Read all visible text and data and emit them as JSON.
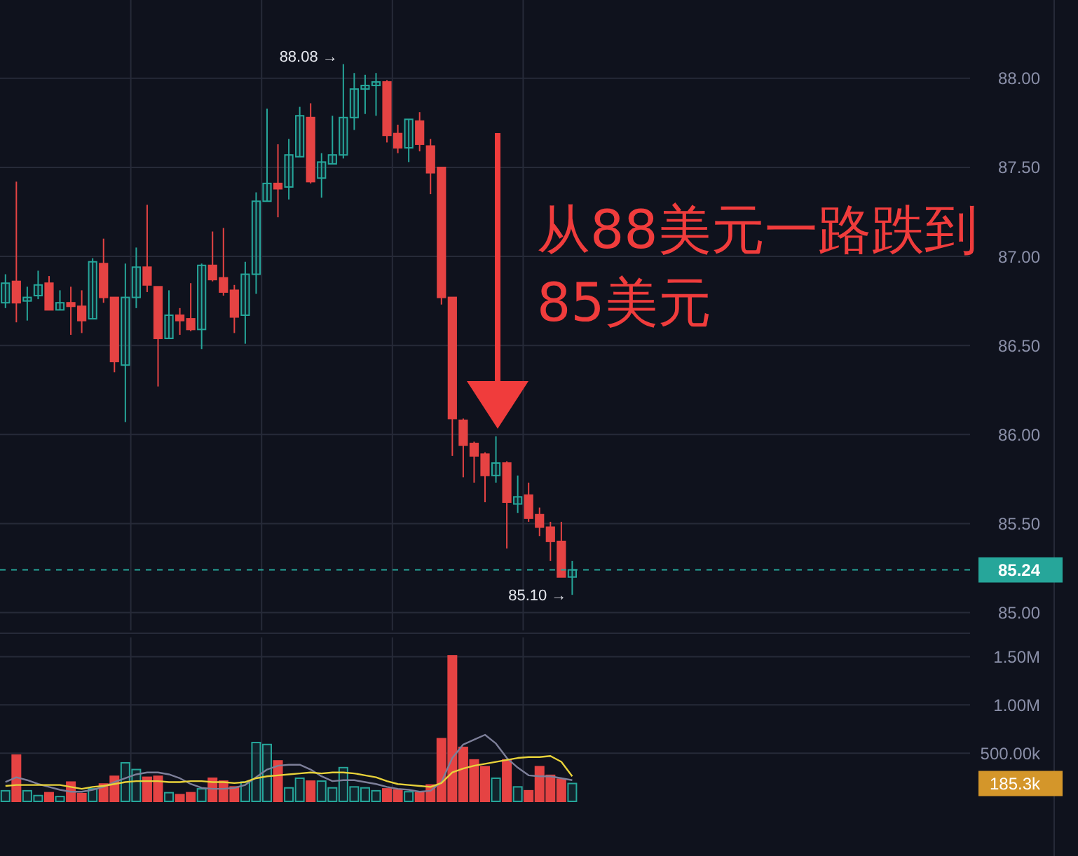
{
  "chart_data": [
    {
      "type": "candlestick",
      "categories": [
        null,
        null,
        null,
        null,
        null,
        null,
        null,
        null,
        null,
        null,
        null,
        null,
        null,
        null,
        null,
        null,
        null,
        null,
        null,
        null,
        null,
        null,
        null,
        null,
        null,
        null,
        null,
        null,
        null,
        null,
        null,
        null,
        null,
        null,
        null,
        null,
        null,
        null,
        null,
        null,
        null,
        null,
        null,
        null,
        null,
        null,
        null,
        null,
        null,
        null,
        null,
        null,
        null,
        null,
        null,
        null,
        null,
        null,
        null,
        null,
        null,
        null,
        null,
        null,
        null,
        null,
        null,
        null,
        null,
        null,
        null,
        null,
        null,
        null,
        null,
        null,
        null,
        null,
        null,
        null,
        null,
        null,
        null,
        null,
        null,
        null,
        null,
        null,
        null
      ],
      "ohlc": [
        [
          86.74,
          86.9,
          86.71,
          86.85
        ],
        [
          86.86,
          87.42,
          86.63,
          86.74
        ],
        [
          86.75,
          86.83,
          86.64,
          86.77
        ],
        [
          86.78,
          86.92,
          86.76,
          86.84
        ],
        [
          86.85,
          86.89,
          86.7,
          86.7
        ],
        [
          86.7,
          86.81,
          86.7,
          86.74
        ],
        [
          86.74,
          86.83,
          86.56,
          86.72
        ],
        [
          86.72,
          86.81,
          86.57,
          86.64
        ],
        [
          86.65,
          86.99,
          86.65,
          86.97
        ],
        [
          86.96,
          87.1,
          86.74,
          86.77
        ],
        [
          86.77,
          86.77,
          86.35,
          86.41
        ],
        [
          86.39,
          86.96,
          86.07,
          86.77
        ],
        [
          86.77,
          87.05,
          86.71,
          86.94
        ],
        [
          86.94,
          87.29,
          86.8,
          86.84
        ],
        [
          86.83,
          86.83,
          86.27,
          86.54
        ],
        [
          86.54,
          86.81,
          86.54,
          86.67
        ],
        [
          86.67,
          86.71,
          86.56,
          86.64
        ],
        [
          86.65,
          86.85,
          86.58,
          86.59
        ],
        [
          86.59,
          86.96,
          86.48,
          86.95
        ],
        [
          86.95,
          87.14,
          86.86,
          86.87
        ],
        [
          86.88,
          87.16,
          86.78,
          86.8
        ],
        [
          86.81,
          86.84,
          86.57,
          86.66
        ],
        [
          86.67,
          86.97,
          86.51,
          86.9
        ],
        [
          86.9,
          87.36,
          86.79,
          87.31
        ],
        [
          87.31,
          87.83,
          87.31,
          87.41
        ],
        [
          87.41,
          87.63,
          87.22,
          87.38
        ],
        [
          87.39,
          87.66,
          87.32,
          87.57
        ],
        [
          87.56,
          87.84,
          87.56,
          87.79
        ],
        [
          87.78,
          87.86,
          87.41,
          87.42
        ],
        [
          87.44,
          87.58,
          87.33,
          87.53
        ],
        [
          87.52,
          87.79,
          87.52,
          87.57
        ],
        [
          87.57,
          88.08,
          87.55,
          87.78
        ],
        [
          87.78,
          88.03,
          87.71,
          87.94
        ],
        [
          87.94,
          88.02,
          87.8,
          87.96
        ],
        [
          87.96,
          88.03,
          87.79,
          87.98
        ],
        [
          87.98,
          87.99,
          87.64,
          87.68
        ],
        [
          87.69,
          87.74,
          87.58,
          87.61
        ],
        [
          87.61,
          87.77,
          87.53,
          87.77
        ],
        [
          87.76,
          87.81,
          87.59,
          87.63
        ],
        [
          87.62,
          87.66,
          87.35,
          87.47
        ],
        [
          87.5,
          87.5,
          86.73,
          86.77
        ],
        [
          86.77,
          86.77,
          85.88,
          86.09
        ],
        [
          86.08,
          86.09,
          85.76,
          85.94
        ],
        [
          85.95,
          85.96,
          85.73,
          85.88
        ],
        [
          85.89,
          85.9,
          85.62,
          85.77
        ],
        [
          85.77,
          85.99,
          85.73,
          85.84
        ],
        [
          85.84,
          85.85,
          85.36,
          85.62
        ],
        [
          85.61,
          85.77,
          85.56,
          85.65
        ],
        [
          85.66,
          85.73,
          85.51,
          85.53
        ],
        [
          85.55,
          85.59,
          85.43,
          85.48
        ],
        [
          85.48,
          85.51,
          85.29,
          85.4
        ],
        [
          85.4,
          85.51,
          85.2,
          85.2
        ],
        [
          85.2,
          85.29,
          85.1,
          85.24
        ],
        null,
        null,
        null,
        null,
        null,
        null,
        null,
        null,
        null,
        null,
        null,
        null,
        null,
        null,
        null,
        null,
        null,
        null,
        null,
        null,
        null,
        null,
        null,
        null,
        null,
        null,
        null,
        null,
        null,
        null,
        null,
        null,
        null,
        null,
        null,
        null
      ],
      "colors": [
        "#26a69a",
        "#e54343",
        "#26a69a",
        "#26a69a",
        "#e54343",
        "#26a69a",
        "#e54343",
        "#e54343",
        "#26a69a",
        "#e54343",
        "#e54343",
        "#26a69a",
        "#26a69a",
        "#e54343",
        "#e54343",
        "#26a69a",
        "#e54343",
        "#e54343",
        "#26a69a",
        "#e54343",
        "#e54343",
        "#e54343",
        "#26a69a",
        "#26a69a",
        "#26a69a",
        "#e54343",
        "#26a69a",
        "#26a69a",
        "#e54343",
        "#26a69a",
        "#26a69a",
        "#26a69a",
        "#26a69a",
        "#26a69a",
        "#26a69a",
        "#e54343",
        "#e54343",
        "#26a69a",
        "#e54343",
        "#e54343",
        "#e54343",
        "#e54343",
        "#e54343",
        "#e54343",
        "#e54343",
        "#26a69a",
        "#e54343",
        "#26a69a",
        "#e54343",
        "#e54343",
        "#e54343",
        "#e54343",
        "#26a69a",
        null,
        null,
        null,
        null,
        null,
        null,
        null,
        null,
        null,
        null,
        null,
        null,
        null,
        null,
        null,
        null,
        null,
        null,
        null,
        null,
        null,
        null,
        null,
        null,
        null,
        null,
        null,
        null,
        null,
        null,
        null,
        null,
        null,
        null,
        null,
        null
      ],
      "ylim": [
        84.9,
        88.44
      ],
      "yticks": [
        {
          "value": 85,
          "label": "85.00"
        },
        {
          "value": 85.5,
          "label": "85.50"
        },
        {
          "value": 86,
          "label": "86.00"
        },
        {
          "value": 86.5,
          "label": "86.50"
        },
        {
          "value": 87,
          "label": "87.00"
        },
        {
          "value": 87.5,
          "label": "87.50"
        },
        {
          "value": 88,
          "label": "88.00"
        }
      ],
      "grid": true,
      "tick_labels": "y",
      "ref_lines": [
        {
          "axis": "y",
          "value": 85.24,
          "label": "85.24",
          "color": "#26a69a",
          "line_style": "dashed"
        }
      ],
      "annotations": [
        "88.08 →",
        "85.10 →",
        "从88美元一路跌到\n85美元"
      ]
    },
    {
      "type": "bar",
      "categories": [
        null,
        null,
        null,
        null,
        null,
        null,
        null,
        null,
        null,
        null,
        null,
        null,
        null,
        null,
        null,
        null,
        null,
        null,
        null,
        null,
        null,
        null,
        null,
        null,
        null,
        null,
        null,
        null,
        null,
        null,
        null,
        null,
        null,
        null,
        null,
        null,
        null,
        null,
        null,
        null,
        null,
        null,
        null,
        null,
        null,
        null,
        null,
        null,
        null,
        null,
        null,
        null,
        null,
        null,
        null,
        null,
        null,
        null,
        null,
        null,
        null,
        null,
        null,
        null,
        null,
        null,
        null,
        null,
        null,
        null,
        null,
        null,
        null,
        null,
        null,
        null,
        null,
        null,
        null,
        null,
        null,
        null,
        null,
        null,
        null,
        null,
        null,
        null,
        null
      ],
      "series": [
        {
          "type": "bar",
          "values": [
            110000,
            480000,
            110000,
            60000,
            90000,
            50000,
            200000,
            80000,
            130000,
            180000,
            260000,
            400000,
            330000,
            250000,
            260000,
            90000,
            70000,
            90000,
            130000,
            240000,
            210000,
            150000,
            200000,
            610000,
            590000,
            420000,
            140000,
            240000,
            210000,
            210000,
            140000,
            350000,
            150000,
            140000,
            110000,
            130000,
            120000,
            100000,
            90000,
            170000,
            650000,
            1510000,
            560000,
            430000,
            360000,
            240000,
            430000,
            150000,
            110000,
            360000,
            270000,
            230000,
            185300,
            null,
            null,
            null,
            null,
            null,
            null,
            null,
            null,
            null,
            null,
            null,
            null,
            null,
            null,
            null,
            null,
            null,
            null,
            null,
            null,
            null,
            null,
            null,
            null,
            null,
            null,
            null,
            null,
            null,
            null,
            null,
            null,
            null,
            null,
            null,
            null
          ],
          "colors": [
            "#26a69a",
            "#e54343",
            "#26a69a",
            "#26a69a",
            "#e54343",
            "#26a69a",
            "#e54343",
            "#e54343",
            "#26a69a",
            "#e54343",
            "#e54343",
            "#26a69a",
            "#26a69a",
            "#e54343",
            "#e54343",
            "#26a69a",
            "#e54343",
            "#e54343",
            "#26a69a",
            "#e54343",
            "#e54343",
            "#e54343",
            "#26a69a",
            "#26a69a",
            "#26a69a",
            "#e54343",
            "#26a69a",
            "#26a69a",
            "#e54343",
            "#26a69a",
            "#26a69a",
            "#26a69a",
            "#26a69a",
            "#26a69a",
            "#26a69a",
            "#e54343",
            "#e54343",
            "#26a69a",
            "#e54343",
            "#e54343",
            "#e54343",
            "#e54343",
            "#e54343",
            "#e54343",
            "#e54343",
            "#26a69a",
            "#e54343",
            "#26a69a",
            "#e54343",
            "#e54343",
            "#e54343",
            "#e54343",
            "#26a69a",
            null,
            null,
            null,
            null,
            null,
            null,
            null,
            null,
            null,
            null,
            null,
            null,
            null,
            null,
            null,
            null,
            null,
            null,
            null,
            null,
            null,
            null,
            null,
            null,
            null,
            null,
            null,
            null,
            null,
            null,
            null,
            null,
            null,
            null,
            null,
            null
          ]
        },
        {
          "type": "line",
          "color": "#7d7f99",
          "values": [
            200000,
            250000,
            220000,
            180000,
            150000,
            120000,
            100000,
            100000,
            120000,
            150000,
            200000,
            240000,
            280000,
            300000,
            300000,
            280000,
            240000,
            180000,
            140000,
            130000,
            130000,
            140000,
            170000,
            250000,
            330000,
            370000,
            380000,
            380000,
            330000,
            260000,
            210000,
            220000,
            220000,
            200000,
            180000,
            150000,
            130000,
            120000,
            100000,
            110000,
            200000,
            450000,
            590000,
            640000,
            690000,
            600000,
            450000,
            350000,
            270000,
            260000,
            260000,
            240000,
            220000,
            null,
            null,
            null,
            null,
            null,
            null,
            null,
            null,
            null,
            null,
            null,
            null,
            null,
            null,
            null,
            null,
            null,
            null,
            null,
            null,
            null,
            null,
            null,
            null,
            null,
            null,
            null,
            null,
            null,
            null,
            null,
            null,
            null,
            null,
            null,
            null
          ]
        },
        {
          "type": "line",
          "color": "#e8d23a",
          "values": [
            160000,
            170000,
            170000,
            170000,
            170000,
            170000,
            150000,
            130000,
            150000,
            160000,
            180000,
            200000,
            210000,
            210000,
            210000,
            200000,
            200000,
            210000,
            210000,
            200000,
            200000,
            190000,
            200000,
            240000,
            260000,
            270000,
            280000,
            290000,
            300000,
            290000,
            300000,
            300000,
            290000,
            270000,
            250000,
            210000,
            180000,
            170000,
            160000,
            150000,
            190000,
            300000,
            340000,
            370000,
            390000,
            410000,
            430000,
            450000,
            460000,
            460000,
            470000,
            410000,
            260000,
            null,
            null,
            null,
            null,
            null,
            null,
            null,
            null,
            null,
            null,
            null,
            null,
            null,
            null,
            null,
            null,
            null,
            null,
            null,
            null,
            null,
            null,
            null,
            null,
            null,
            null,
            null,
            null,
            null,
            null,
            null,
            null,
            null,
            null,
            null,
            null
          ]
        }
      ],
      "ylim": [
        0,
        1700000
      ],
      "yticks": [
        {
          "value": 500000,
          "label": "500.00k"
        },
        {
          "value": 1000000,
          "label": "1.00M"
        },
        {
          "value": 1500000,
          "label": "1.50M"
        }
      ],
      "grid": true,
      "tick_labels": "y",
      "annotations": [
        "185.3k"
      ]
    }
  ]
}
